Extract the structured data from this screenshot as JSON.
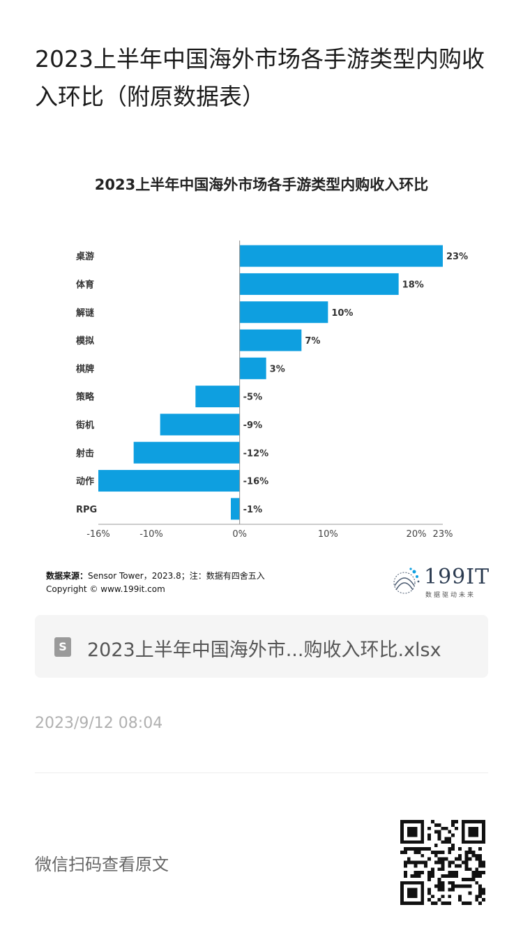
{
  "article": {
    "title": "2023上半年中国海外市场各手游类型内购收入环比（附原数据表）"
  },
  "chart_data": {
    "type": "bar",
    "orientation": "horizontal",
    "title": "2023上半年中国海外市场各手游类型内购收入环比",
    "categories": [
      "桌游",
      "体育",
      "解谜",
      "模拟",
      "棋牌",
      "策略",
      "街机",
      "射击",
      "动作",
      "RPG"
    ],
    "values": [
      23,
      18,
      10,
      7,
      3,
      -5,
      -9,
      -12,
      -16,
      -1
    ],
    "value_labels": [
      "23%",
      "18%",
      "10%",
      "7%",
      "3%",
      "-5%",
      "-9%",
      "-12%",
      "-16%",
      "-1%"
    ],
    "xlim": [
      -16,
      23
    ],
    "x_ticks": [
      -16,
      -10,
      0,
      10,
      20,
      23
    ],
    "x_tick_labels": [
      "-16%",
      "-10%",
      "0%",
      "10%",
      "20%",
      "23%"
    ],
    "bar_color": "#0e9fe0",
    "grid": false,
    "legend": "none",
    "source_label": "数据来源：",
    "source_text": "Sensor Tower，2023.8；注：数据有四舍五入",
    "copyright": "Copyright © www.199it.com",
    "logo_text": "199IT",
    "logo_sub": "数据驱动未来"
  },
  "attachment": {
    "icon": "S",
    "file_name": "2023上半年中国海外市...购收入环比.xlsx"
  },
  "meta": {
    "timestamp": "2023/9/12 08:04",
    "qr_caption": "微信扫码查看原文"
  }
}
